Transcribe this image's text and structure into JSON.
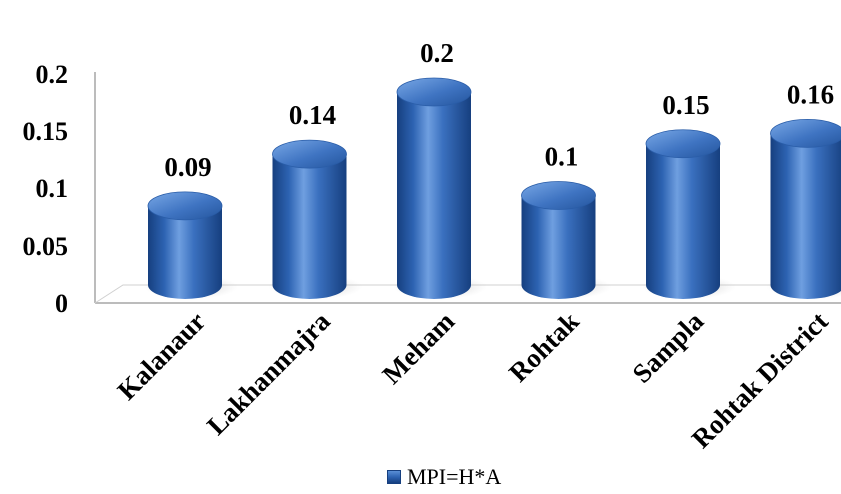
{
  "chart_data": {
    "type": "bar",
    "title": "",
    "xlabel": "",
    "ylabel": "",
    "categories": [
      "Kalanaur",
      "Lakhanmajra",
      "Meham",
      "Rohtak",
      "Sampla",
      "Rohtak District"
    ],
    "series": [
      {
        "name": "MPI=H*A",
        "values": [
          0.09,
          0.14,
          0.2,
          0.1,
          0.15,
          0.16
        ]
      }
    ],
    "data_labels": [
      "0.09",
      "0.14",
      "0.2",
      "0.1",
      "0.15",
      "0.16"
    ],
    "y_ticks": [
      "0",
      "0.05",
      "0.1",
      "0.15",
      "0.2"
    ],
    "ylim": [
      0,
      0.2
    ],
    "grid": false,
    "legend_position": "bottom",
    "bar_style": "3d-cylinder",
    "colors": {
      "bar_light": "#5a8fd6",
      "bar_mid": "#2d63b2",
      "bar_dark": "#163f7f",
      "axis": "#a6a6a6",
      "text": "#000000"
    }
  }
}
